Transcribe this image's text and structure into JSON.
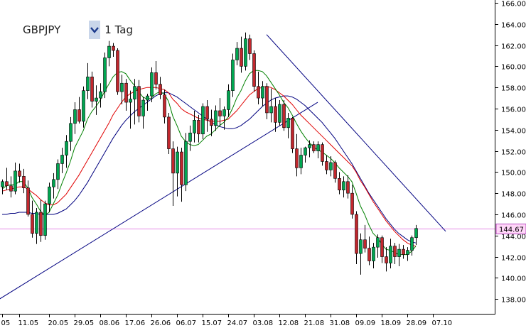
{
  "toolbar": {
    "symbol": "GBPJPY",
    "timeframe": "1 Tag",
    "dropdown_icon": "chevron-down-icon"
  },
  "colors": {
    "bull": "#00a651",
    "bear": "#c1272d",
    "ma_fast": "#008000",
    "ma_mid": "#e00000",
    "ma_slow": "#00007f",
    "trendline": "#000080",
    "price_line": "#e48ae6",
    "price_label_bg": "#ffd6f8"
  },
  "chart_data": {
    "type": "candlestick",
    "title": "",
    "xlabel": "",
    "ylabel": "",
    "ylim": [
      136.6,
      166.0
    ],
    "yticks": [
      138,
      140,
      142,
      144,
      146,
      148,
      150,
      152,
      154,
      156,
      158,
      160,
      162,
      164,
      166
    ],
    "ytick_labels": [
      "138.00",
      "140.00",
      "142.00",
      "144.00",
      "146.00",
      "148.00",
      "150.00",
      "152.00",
      "154.00",
      "156.00",
      "158.00",
      "160.00",
      "162.00",
      "164.00",
      "166.00"
    ],
    "current_price": 144.67,
    "current_price_label": "144.67",
    "xtick_labels": [
      {
        "label": "05",
        "index": 0
      },
      {
        "label": "11.05",
        "index": 4
      },
      {
        "label": "20.05",
        "index": 11
      },
      {
        "label": "29.05",
        "index": 17
      },
      {
        "label": "08.06",
        "index": 23
      },
      {
        "label": "17.06",
        "index": 29
      },
      {
        "label": "26.06",
        "index": 35
      },
      {
        "label": "06.07",
        "index": 41
      },
      {
        "label": "15.07",
        "index": 47
      },
      {
        "label": "24.07",
        "index": 53
      },
      {
        "label": "03.08",
        "index": 59
      },
      {
        "label": "12.08",
        "index": 65
      },
      {
        "label": "21.08",
        "index": 71
      },
      {
        "label": "31.08",
        "index": 77
      },
      {
        "label": "09.09",
        "index": 83
      },
      {
        "label": "18.09",
        "index": 89
      },
      {
        "label": "28.09",
        "index": 95
      },
      {
        "label": "07.10",
        "index": 101
      }
    ],
    "candles": [
      [
        148.6,
        149.3,
        147.9,
        149.1
      ],
      [
        149.1,
        150.4,
        148.3,
        148.7
      ],
      [
        148.7,
        149.6,
        147.6,
        148.2
      ],
      [
        148.2,
        150.9,
        147.9,
        150.1
      ],
      [
        150.1,
        150.8,
        149.0,
        149.6
      ],
      [
        149.6,
        150.3,
        148.0,
        148.5
      ],
      [
        148.5,
        149.2,
        145.8,
        146.0
      ],
      [
        146.0,
        147.3,
        143.8,
        144.2
      ],
      [
        144.2,
        146.6,
        143.2,
        146.2
      ],
      [
        146.2,
        147.4,
        143.4,
        144.0
      ],
      [
        144.0,
        147.3,
        143.6,
        147.0
      ],
      [
        147.0,
        149.0,
        146.2,
        148.6
      ],
      [
        148.6,
        149.9,
        147.5,
        149.3
      ],
      [
        149.3,
        151.2,
        148.4,
        150.8
      ],
      [
        150.8,
        152.3,
        149.9,
        151.6
      ],
      [
        151.6,
        153.5,
        150.4,
        152.9
      ],
      [
        152.9,
        155.2,
        152.0,
        154.6
      ],
      [
        154.6,
        156.6,
        153.6,
        155.9
      ],
      [
        155.9,
        157.1,
        154.6,
        154.8
      ],
      [
        154.8,
        158.1,
        154.2,
        157.7
      ],
      [
        157.7,
        160.3,
        156.9,
        159.0
      ],
      [
        159.0,
        159.5,
        156.1,
        156.7
      ],
      [
        156.7,
        158.2,
        155.4,
        157.0
      ],
      [
        157.0,
        158.4,
        156.1,
        157.6
      ],
      [
        157.6,
        161.3,
        157.0,
        160.8
      ],
      [
        160.8,
        162.4,
        160.0,
        161.9
      ],
      [
        161.9,
        162.2,
        160.9,
        161.5
      ],
      [
        161.5,
        161.7,
        157.3,
        157.6
      ],
      [
        157.6,
        159.2,
        156.4,
        158.4
      ],
      [
        158.4,
        158.8,
        155.8,
        156.6
      ],
      [
        156.6,
        157.7,
        154.1,
        156.9
      ],
      [
        156.9,
        158.8,
        154.5,
        158.1
      ],
      [
        158.1,
        158.7,
        154.7,
        155.3
      ],
      [
        155.3,
        157.1,
        154.1,
        156.8
      ],
      [
        156.8,
        157.4,
        155.8,
        157.2
      ],
      [
        157.2,
        159.9,
        156.6,
        159.4
      ],
      [
        159.4,
        160.5,
        157.8,
        158.3
      ],
      [
        158.3,
        159.0,
        156.9,
        157.3
      ],
      [
        157.3,
        157.8,
        154.6,
        155.2
      ],
      [
        155.2,
        155.6,
        151.7,
        152.2
      ],
      [
        152.2,
        152.9,
        146.8,
        149.9
      ],
      [
        149.9,
        152.4,
        147.7,
        151.9
      ],
      [
        151.9,
        152.3,
        147.2,
        148.8
      ],
      [
        148.8,
        153.7,
        148.2,
        152.9
      ],
      [
        152.9,
        154.4,
        152.0,
        153.7
      ],
      [
        153.7,
        155.8,
        152.8,
        154.9
      ],
      [
        154.9,
        155.4,
        152.8,
        153.6
      ],
      [
        153.6,
        156.5,
        153.1,
        156.2
      ],
      [
        156.2,
        156.8,
        153.8,
        155.0
      ],
      [
        155.0,
        155.9,
        153.4,
        154.4
      ],
      [
        154.4,
        156.3,
        153.9,
        155.8
      ],
      [
        155.8,
        157.0,
        154.3,
        155.3
      ],
      [
        155.3,
        156.2,
        154.0,
        155.9
      ],
      [
        155.9,
        158.3,
        155.2,
        157.7
      ],
      [
        157.7,
        161.2,
        157.1,
        160.6
      ],
      [
        160.6,
        162.3,
        160.1,
        161.7
      ],
      [
        161.7,
        162.8,
        159.4,
        160.0
      ],
      [
        160.0,
        163.2,
        159.6,
        162.6
      ],
      [
        162.6,
        163.0,
        160.6,
        161.2
      ],
      [
        161.2,
        161.5,
        157.6,
        158.1
      ],
      [
        158.1,
        159.5,
        156.4,
        157.0
      ],
      [
        157.0,
        158.6,
        156.2,
        158.1
      ],
      [
        158.1,
        158.4,
        155.0,
        155.6
      ],
      [
        155.6,
        157.9,
        154.7,
        156.2
      ],
      [
        156.2,
        157.0,
        153.8,
        154.7
      ],
      [
        154.7,
        156.8,
        154.4,
        156.4
      ],
      [
        156.4,
        156.8,
        153.9,
        154.2
      ],
      [
        154.2,
        155.6,
        153.2,
        155.1
      ],
      [
        155.1,
        155.2,
        151.8,
        152.2
      ],
      [
        152.2,
        153.6,
        149.6,
        150.4
      ],
      [
        150.4,
        152.3,
        149.8,
        151.6
      ],
      [
        151.6,
        152.4,
        150.9,
        152.3
      ],
      [
        152.3,
        153.0,
        151.4,
        152.6
      ],
      [
        152.6,
        152.9,
        151.8,
        152.0
      ],
      [
        152.0,
        152.9,
        151.3,
        152.6
      ],
      [
        152.6,
        152.8,
        150.6,
        151.0
      ],
      [
        151.0,
        151.6,
        149.8,
        150.2
      ],
      [
        150.2,
        151.5,
        149.6,
        150.9
      ],
      [
        150.9,
        151.1,
        149.0,
        149.4
      ],
      [
        149.4,
        150.0,
        147.9,
        148.3
      ],
      [
        148.3,
        149.6,
        147.6,
        149.1
      ],
      [
        149.1,
        149.7,
        147.5,
        148.0
      ],
      [
        148.0,
        148.8,
        145.6,
        146.0
      ],
      [
        146.0,
        146.3,
        141.3,
        142.3
      ],
      [
        142.3,
        144.2,
        140.3,
        143.6
      ],
      [
        143.6,
        145.0,
        142.4,
        142.8
      ],
      [
        142.8,
        143.9,
        141.2,
        141.6
      ],
      [
        141.6,
        143.3,
        140.9,
        142.9
      ],
      [
        142.9,
        144.1,
        141.9,
        143.8
      ],
      [
        143.8,
        144.0,
        141.4,
        142.0
      ],
      [
        142.0,
        142.9,
        140.6,
        141.4
      ],
      [
        141.4,
        143.7,
        140.9,
        143.0
      ],
      [
        143.0,
        143.3,
        141.3,
        142.0
      ],
      [
        142.0,
        143.2,
        141.1,
        142.7
      ],
      [
        142.7,
        143.1,
        141.8,
        142.2
      ],
      [
        142.2,
        142.9,
        141.6,
        142.6
      ],
      [
        142.6,
        144.0,
        142.1,
        143.8
      ],
      [
        143.8,
        145.0,
        143.1,
        144.67
      ]
    ],
    "ma_fast": [
      148.4,
      148.7,
      148.8,
      148.8,
      149.1,
      149.1,
      148.5,
      147.6,
      147.0,
      146.3,
      145.9,
      146.2,
      147.0,
      147.8,
      148.9,
      149.9,
      151.0,
      152.3,
      153.1,
      153.9,
      155.0,
      155.7,
      156.2,
      156.8,
      157.6,
      158.3,
      159.0,
      159.4,
      159.5,
      159.3,
      158.7,
      158.2,
      157.6,
      157.1,
      156.9,
      157.0,
      157.4,
      157.6,
      157.4,
      156.7,
      155.3,
      154.4,
      153.4,
      152.9,
      152.6,
      152.5,
      152.6,
      153.0,
      153.4,
      153.6,
      154.0,
      154.4,
      154.7,
      155.2,
      156.0,
      157.0,
      157.7,
      158.6,
      159.3,
      159.6,
      159.6,
      159.5,
      159.1,
      158.5,
      157.9,
      157.3,
      156.6,
      156.1,
      155.4,
      154.6,
      153.9,
      153.3,
      152.8,
      152.4,
      152.1,
      151.9,
      151.6,
      151.3,
      150.9,
      150.4,
      150.0,
      149.6,
      149.1,
      148.0,
      146.8,
      146.0,
      145.0,
      144.2,
      143.8,
      143.2,
      142.7,
      142.6,
      142.4,
      142.2,
      142.2,
      142.2,
      142.5,
      143.0
    ],
    "ma_mid": [
      148.2,
      148.3,
      148.4,
      148.5,
      148.6,
      148.6,
      148.4,
      148.1,
      147.8,
      147.4,
      147.1,
      146.9,
      146.9,
      147.1,
      147.5,
      147.9,
      148.5,
      149.1,
      149.7,
      150.4,
      151.1,
      151.8,
      152.5,
      153.2,
      153.9,
      154.6,
      155.4,
      156.0,
      156.6,
      157.1,
      157.4,
      157.6,
      157.8,
      157.9,
      158.0,
      158.0,
      158.0,
      157.9,
      157.8,
      157.5,
      156.9,
      156.5,
      156.0,
      155.7,
      155.5,
      155.3,
      155.1,
      155.0,
      154.9,
      154.8,
      154.8,
      154.8,
      154.9,
      155.0,
      155.4,
      155.8,
      156.3,
      156.8,
      157.3,
      157.6,
      157.9,
      158.0,
      158.1,
      158.0,
      157.8,
      157.5,
      157.2,
      156.8,
      156.4,
      155.9,
      155.4,
      155.0,
      154.6,
      154.2,
      153.8,
      153.4,
      153.0,
      152.6,
      152.2,
      151.8,
      151.4,
      151.0,
      150.6,
      150.0,
      149.2,
      148.6,
      147.9,
      147.2,
      146.6,
      146.0,
      145.4,
      144.9,
      144.4,
      144.0,
      143.6,
      143.3,
      143.1,
      143.0
    ],
    "ma_slow": [
      146.0,
      146.0,
      146.1,
      146.1,
      146.2,
      146.2,
      146.2,
      146.1,
      146.1,
      146.0,
      146.0,
      146.0,
      146.0,
      146.1,
      146.3,
      146.5,
      146.9,
      147.3,
      147.8,
      148.4,
      149.0,
      149.7,
      150.4,
      151.1,
      151.8,
      152.5,
      153.2,
      153.8,
      154.4,
      154.9,
      155.3,
      155.7,
      156.0,
      156.3,
      156.6,
      156.9,
      157.2,
      157.4,
      157.5,
      157.5,
      157.3,
      157.1,
      156.8,
      156.5,
      156.2,
      155.9,
      155.6,
      155.3,
      155.0,
      154.7,
      154.5,
      154.3,
      154.2,
      154.1,
      154.1,
      154.2,
      154.4,
      154.7,
      155.0,
      155.4,
      155.8,
      156.2,
      156.5,
      156.8,
      157.0,
      157.1,
      157.2,
      157.2,
      157.1,
      156.9,
      156.6,
      156.3,
      155.9,
      155.5,
      155.1,
      154.7,
      154.2,
      153.7,
      153.2,
      152.6,
      152.0,
      151.4,
      150.8,
      150.1,
      149.4,
      148.7,
      148.0,
      147.4,
      146.8,
      146.2,
      145.6,
      145.1,
      144.6,
      144.2,
      143.9,
      143.6,
      143.4,
      143.3
    ],
    "trendlines": [
      {
        "from": {
          "index": -1,
          "price": 137.9
        },
        "to": {
          "index": 74,
          "price": 156.6
        }
      },
      {
        "from": {
          "index": 62,
          "price": 163.0
        },
        "to": {
          "index": 104,
          "price": 144.4
        }
      }
    ]
  }
}
